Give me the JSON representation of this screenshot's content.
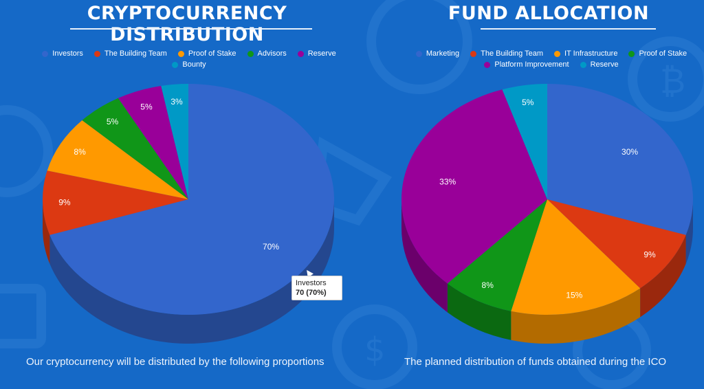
{
  "colors": {
    "background": "#1569c7"
  },
  "chart_data": [
    {
      "type": "pie",
      "title": "CRYPTOCURRENCY DISTRIBUTION",
      "caption": "Our cryptocurrency will be distributed by the following proportions",
      "legend_position": "top",
      "start_angle_deg": 0,
      "slices": [
        {
          "name": "Investors",
          "value": 70,
          "label": "70%",
          "color": "#3366cc"
        },
        {
          "name": "The Building Team",
          "value": 9,
          "label": "9%",
          "color": "#dc3912"
        },
        {
          "name": "Proof of Stake",
          "value": 8,
          "label": "8%",
          "color": "#ff9900"
        },
        {
          "name": "Advisors",
          "value": 5,
          "label": "5%",
          "color": "#109618"
        },
        {
          "name": "Reserve",
          "value": 5,
          "label": "5%",
          "color": "#990099"
        },
        {
          "name": "Bounty",
          "value": 3,
          "label": "3%",
          "color": "#0099c6"
        }
      ],
      "tooltip": {
        "name": "Investors",
        "value_text": "70 (70%)"
      }
    },
    {
      "type": "pie",
      "title": "FUND ALLOCATION",
      "caption": "The planned distribution of funds obtained during the ICO",
      "legend_position": "top",
      "start_angle_deg": 0,
      "slices": [
        {
          "name": "Marketing",
          "value": 30,
          "label": "30%",
          "color": "#3366cc"
        },
        {
          "name": "The Building Team",
          "value": 9,
          "label": "9%",
          "color": "#dc3912"
        },
        {
          "name": "IT Infrastructure",
          "value": 15,
          "label": "15%",
          "color": "#ff9900"
        },
        {
          "name": "Proof of Stake",
          "value": 8,
          "label": "8%",
          "color": "#109618"
        },
        {
          "name": "Platform Improvement",
          "value": 33,
          "label": "33%",
          "color": "#990099"
        },
        {
          "name": "Reserve",
          "value": 5,
          "label": "5%",
          "color": "#0099c6"
        }
      ]
    }
  ]
}
